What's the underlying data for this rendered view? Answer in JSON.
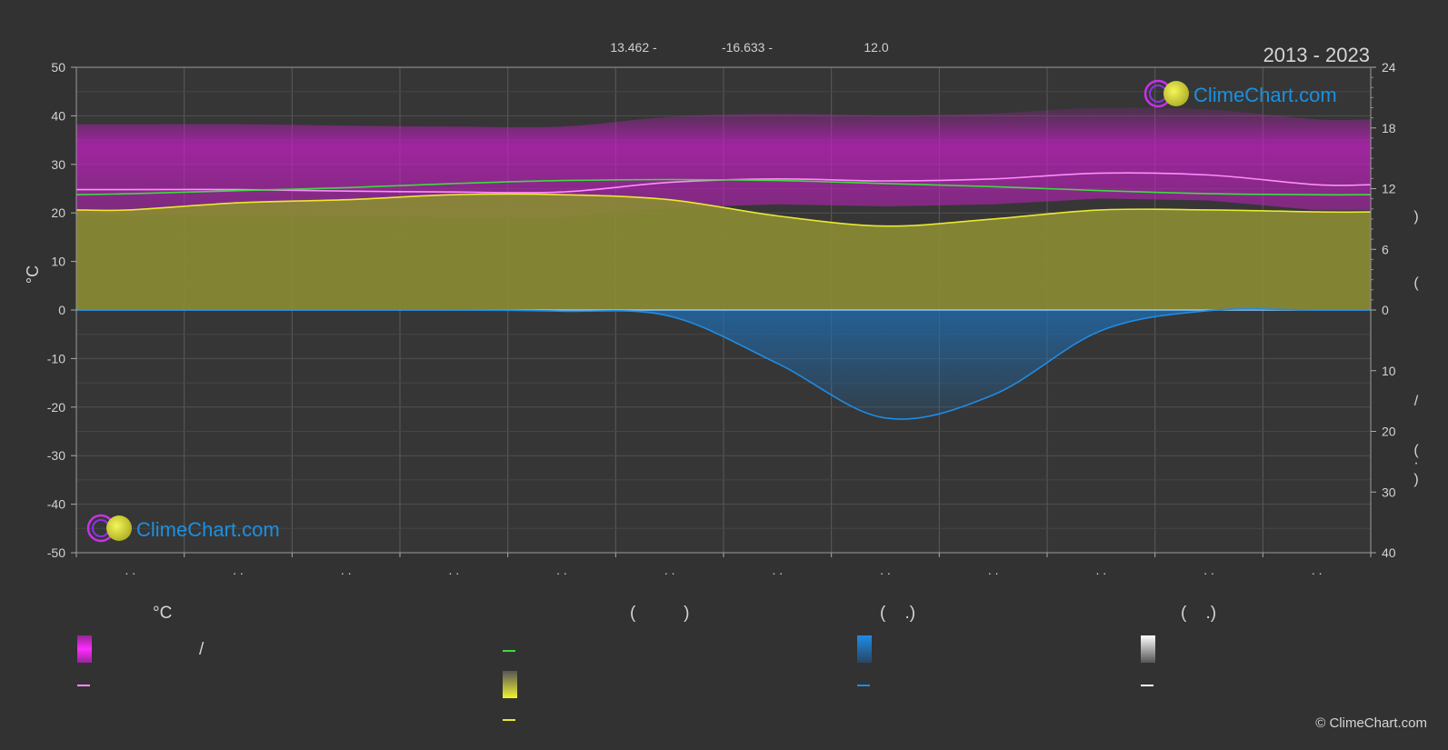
{
  "header": {
    "period": "2013 - 2023",
    "coords": [
      "13.462 -",
      "-16.633 -",
      "12.0"
    ]
  },
  "brand": {
    "logo_text": "ClimeChart.com",
    "copyright": "© ClimeChart.com"
  },
  "colors": {
    "background": "#323232",
    "temp_band": "#c81ec8",
    "max_line": "#ff8cff",
    "daylight": "#3cdc3c",
    "sunshine_band": "#8a8a34",
    "sunshine_line": "#e8e832",
    "precip_band": "#1e6eb4",
    "precip_line": "#1e8ce6",
    "zero_line": "#8cc8ff",
    "brand_blue": "#1b90e0"
  },
  "chart_data": {
    "type": "line",
    "months": 12,
    "x_tick_labels": [
      ". .",
      ". .",
      ". .",
      ". .",
      ". .",
      ". .",
      ". .",
      ". .",
      ". .",
      ". .",
      ". .",
      ". ."
    ],
    "left_axis": {
      "label": "°C",
      "ylim": [
        -50,
        50
      ],
      "ticks": [
        50,
        40,
        30,
        20,
        10,
        0,
        -10,
        -20,
        -30,
        -40,
        -50
      ]
    },
    "right_axis_hours": {
      "ticks": [
        24,
        18,
        12,
        6,
        0
      ],
      "label_parts": [
        ")",
        "("
      ]
    },
    "right_axis_mm": {
      "ticks": [
        10,
        20,
        30,
        40
      ],
      "label_parts": [
        "/",
        "(",
        "·",
        ")"
      ]
    },
    "grid": true,
    "series": [
      {
        "key": "temp_mean_max",
        "axis": "celsius",
        "x": [
          0,
          0.5,
          1.5,
          2.5,
          3.5,
          4.5,
          5.5,
          6.5,
          7.5,
          8.5,
          9.5,
          10.5,
          11.5,
          12
        ],
        "y": [
          24.8,
          24.8,
          24.8,
          24.5,
          24.3,
          24.3,
          26.3,
          27.0,
          26.6,
          27.0,
          28.2,
          27.8,
          25.8,
          25.8
        ]
      },
      {
        "key": "daylight_hours",
        "axis": "hours",
        "x": [
          0,
          0.5,
          1.5,
          2.5,
          3.5,
          4.5,
          5.5,
          6.5,
          7.5,
          8.5,
          9.5,
          10.5,
          11.5,
          12
        ],
        "y": [
          11.4,
          11.5,
          11.8,
          12.1,
          12.5,
          12.8,
          12.9,
          12.8,
          12.5,
          12.2,
          11.8,
          11.5,
          11.4,
          11.4
        ]
      },
      {
        "key": "sunshine_hours",
        "axis": "hours",
        "x": [
          0,
          0.5,
          1.5,
          2.5,
          3.5,
          4.5,
          5.5,
          6.5,
          7.5,
          8.5,
          9.5,
          10.5,
          11.5,
          12
        ],
        "y": [
          9.9,
          9.9,
          10.6,
          10.9,
          11.4,
          11.4,
          10.9,
          9.3,
          8.3,
          9.0,
          9.9,
          9.9,
          9.7,
          9.7
        ]
      },
      {
        "key": "precipitation_mm",
        "axis": "mm",
        "x": [
          0,
          0.5,
          1.5,
          2.5,
          3.5,
          4.5,
          5.5,
          6.5,
          7.5,
          8.5,
          9.5,
          10.5,
          11.5,
          12
        ],
        "y": [
          0,
          0,
          0,
          0,
          0,
          0.2,
          1.0,
          8.8,
          17.8,
          14.0,
          3.4,
          0.1,
          0,
          0
        ]
      }
    ]
  },
  "legend": {
    "headers": [
      "°C",
      "(          )",
      "(    .)",
      "(    .)"
    ],
    "items": [
      {
        "key": "temp_range",
        "text": "/"
      },
      {
        "key": "temp_max_line",
        "text": ""
      },
      {
        "key": "daylight_line",
        "text": ""
      },
      {
        "key": "sunshine_band",
        "text": ""
      },
      {
        "key": "sunshine_line",
        "text": ""
      },
      {
        "key": "rain_band",
        "text": ""
      },
      {
        "key": "rain_line",
        "text": ""
      },
      {
        "key": "snow_band",
        "text": ""
      },
      {
        "key": "snow_line",
        "text": ""
      }
    ]
  }
}
